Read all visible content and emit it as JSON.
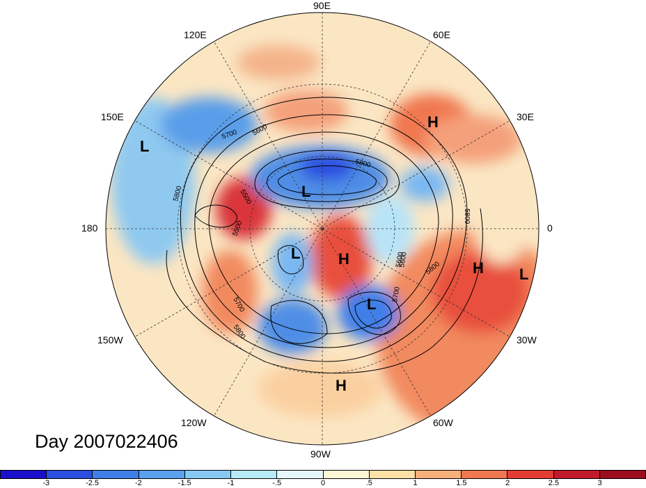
{
  "title": "Day 2007022406",
  "longitude_labels": [
    "90E",
    "60E",
    "30E",
    "0",
    "30W",
    "60W",
    "90W",
    "120W",
    "150W",
    "180",
    "150E",
    "120E"
  ],
  "contour_labels": [
    "5500",
    "5500",
    "5600",
    "5600",
    "5700",
    "5700",
    "5700",
    "5800",
    "5800",
    "5800",
    "5800",
    "5800",
    "5600"
  ],
  "centers": [
    {
      "type": "H",
      "label": "H"
    },
    {
      "type": "L",
      "label": "L"
    },
    {
      "type": "L",
      "label": "L"
    },
    {
      "type": "L",
      "label": "L"
    },
    {
      "type": "H",
      "label": "H"
    },
    {
      "type": "L",
      "label": "L"
    },
    {
      "type": "H",
      "label": "H"
    },
    {
      "type": "L",
      "label": "L"
    },
    {
      "type": "H",
      "label": "H"
    }
  ],
  "colorbar": {
    "ticks": [
      "-3",
      "-2.5",
      "-2",
      "-1.5",
      "-1",
      "-.5",
      "0",
      ".5",
      "1",
      "1.5",
      "2",
      "2.5",
      "3"
    ],
    "colors": [
      "#1a0fcd",
      "#2a4ee0",
      "#3f7fe8",
      "#5aa2ee",
      "#86c9f4",
      "#b8e9f8",
      "#e6f7fb",
      "#fdf6d6",
      "#fde0a6",
      "#f7b07a",
      "#f0774f",
      "#e23c35",
      "#c01a2a",
      "#9c0d1f"
    ]
  }
}
